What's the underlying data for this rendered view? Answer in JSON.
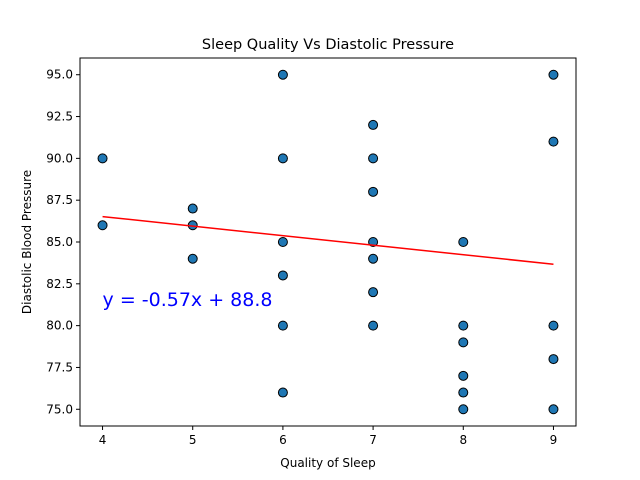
{
  "chart_data": {
    "type": "scatter",
    "title": "Sleep Quality Vs Diastolic Pressure",
    "xlabel": "Quality of Sleep",
    "ylabel": "Diastolic Blood Pressure",
    "xlim": [
      3.75,
      9.25
    ],
    "ylim": [
      74.0,
      96.0
    ],
    "x_ticks": [
      4,
      5,
      6,
      7,
      8,
      9
    ],
    "x_tick_labels": [
      "4",
      "5",
      "6",
      "7",
      "8",
      "9"
    ],
    "y_ticks": [
      75.0,
      77.5,
      80.0,
      82.5,
      85.0,
      87.5,
      90.0,
      92.5,
      95.0
    ],
    "y_tick_labels": [
      "75.0",
      "77.5",
      "80.0",
      "82.5",
      "85.0",
      "87.5",
      "90.0",
      "92.5",
      "95.0"
    ],
    "grid": false,
    "points": [
      {
        "x": 4,
        "y": 90
      },
      {
        "x": 4,
        "y": 86
      },
      {
        "x": 5,
        "y": 87
      },
      {
        "x": 5,
        "y": 86
      },
      {
        "x": 5,
        "y": 84
      },
      {
        "x": 6,
        "y": 95
      },
      {
        "x": 6,
        "y": 90
      },
      {
        "x": 6,
        "y": 85
      },
      {
        "x": 6,
        "y": 83
      },
      {
        "x": 6,
        "y": 80
      },
      {
        "x": 6,
        "y": 76
      },
      {
        "x": 7,
        "y": 92
      },
      {
        "x": 7,
        "y": 90
      },
      {
        "x": 7,
        "y": 88
      },
      {
        "x": 7,
        "y": 85
      },
      {
        "x": 7,
        "y": 84
      },
      {
        "x": 7,
        "y": 82
      },
      {
        "x": 7,
        "y": 80
      },
      {
        "x": 8,
        "y": 85
      },
      {
        "x": 8,
        "y": 80
      },
      {
        "x": 8,
        "y": 79
      },
      {
        "x": 8,
        "y": 77
      },
      {
        "x": 8,
        "y": 76
      },
      {
        "x": 8,
        "y": 75
      },
      {
        "x": 9,
        "y": 95
      },
      {
        "x": 9,
        "y": 91
      },
      {
        "x": 9,
        "y": 80
      },
      {
        "x": 9,
        "y": 78
      },
      {
        "x": 9,
        "y": 75
      }
    ],
    "regression": {
      "slope": -0.57,
      "intercept": 88.8,
      "x_range": [
        4,
        9
      ],
      "equation_text": "y = -0.57x + 88.8",
      "annotation_at": {
        "x": 4.0,
        "y": 81.6
      }
    },
    "colors": {
      "marker_fill": "#1f77b4",
      "marker_edge": "#000000",
      "line": "#ff0000",
      "annotation": "#0000ff"
    }
  }
}
